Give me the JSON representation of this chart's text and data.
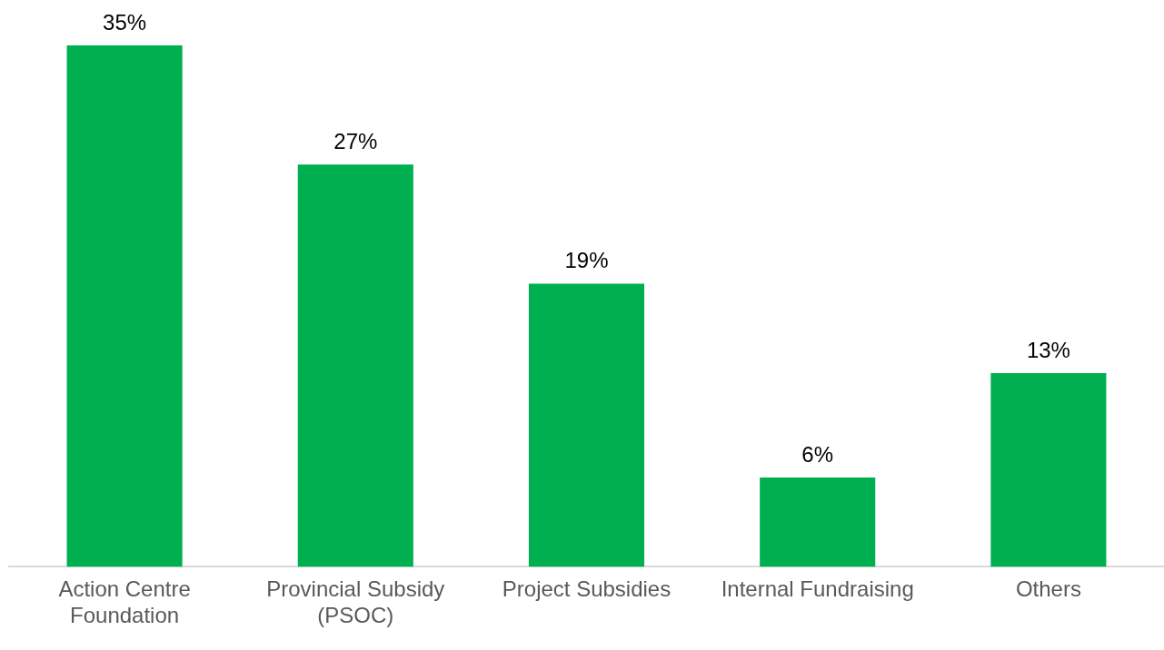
{
  "chart_data": {
    "type": "bar",
    "categories": [
      "Action Centre Foundation",
      "Provincial Subsidy (PSOC)",
      "Project Subsidies",
      "Internal Fundraising",
      "Others"
    ],
    "values": [
      35,
      27,
      19,
      6,
      13
    ],
    "color": "#00b050",
    "value_labels": [
      "35%",
      "27%",
      "19%",
      "6%",
      "13%"
    ],
    "tick_labels": "x",
    "grid": false,
    "legend": false
  }
}
